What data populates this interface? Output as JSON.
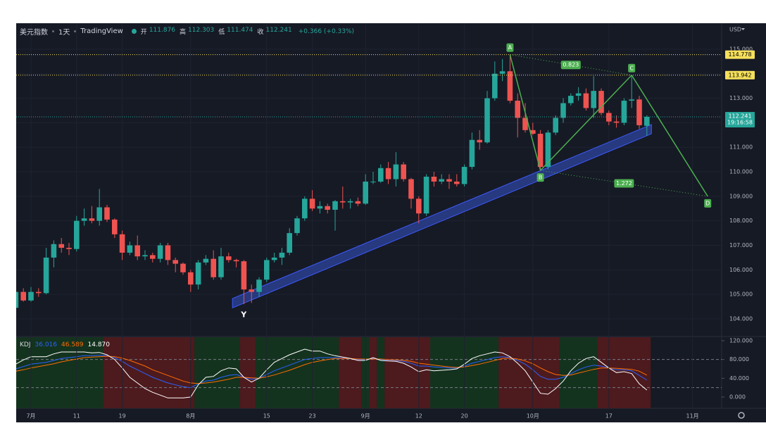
{
  "chart_data": [
    {
      "type": "candlestick",
      "title": "美元指数",
      "interval": "1天",
      "source": "TradingView",
      "currency": "USD",
      "ohlc_legend": [
        {
          "label": "开",
          "value": 111.876
        },
        {
          "label": "高",
          "value": 112.303
        },
        {
          "label": "低",
          "value": 111.474
        },
        {
          "label": "收",
          "value": 112.241
        }
      ],
      "change": "+0.366 (+0.33%)",
      "up_color": "#26a69a",
      "down_color": "#ef5350",
      "grid": true,
      "categories": [
        null,
        null,
        "7月",
        null,
        null,
        null,
        null,
        null,
        "11",
        null,
        null,
        null,
        null,
        null,
        "19",
        null,
        null,
        null,
        null,
        null,
        null,
        null,
        null,
        "8月",
        null,
        null,
        null,
        null,
        null,
        null,
        null,
        null,
        null,
        "15",
        null,
        null,
        null,
        null,
        null,
        "23",
        null,
        null,
        null,
        null,
        null,
        null,
        "9月",
        null,
        null,
        null,
        null,
        null,
        null,
        "12",
        null,
        null,
        null,
        null,
        null,
        "20",
        null,
        null,
        null,
        null,
        null,
        null,
        null,
        null,
        "10月",
        null,
        null,
        null,
        null,
        null,
        null,
        null,
        null,
        null,
        "17",
        null,
        null,
        null,
        null,
        null,
        null,
        null,
        null,
        null,
        null,
        "11月",
        null,
        null,
        null
      ],
      "open": [
        104.45,
        105.1,
        104.75,
        105.1,
        105.05,
        106.5,
        107.05,
        106.9,
        106.85,
        108.0,
        108.1,
        108.0,
        108.55,
        108.05,
        107.45,
        106.7,
        107.0,
        106.55,
        106.6,
        106.45,
        107.0,
        106.4,
        106.25,
        105.9,
        105.4,
        106.3,
        106.45,
        105.7,
        106.55,
        106.4,
        106.35,
        105.2,
        105.1,
        105.6,
        106.4,
        106.5,
        106.7,
        107.5,
        108.1,
        108.9,
        108.5,
        108.6,
        108.45,
        108.8,
        108.75,
        108.8,
        108.7,
        109.6,
        109.6,
        110.15,
        109.7,
        110.3,
        109.7,
        108.9,
        108.3,
        109.8,
        109.6,
        109.7,
        109.6,
        109.5,
        110.2,
        111.3,
        111.2,
        113.0,
        114.0,
        114.1,
        112.9,
        112.2,
        111.7,
        111.55,
        110.2,
        111.6,
        112.2,
        112.8,
        113.1,
        113.2,
        112.6,
        113.3,
        112.4,
        112.05,
        112.0,
        112.9,
        112.95,
        111.876,
        null,
        null,
        null,
        null,
        null,
        null,
        null,
        null,
        null
      ],
      "high": [
        105.15,
        105.25,
        105.3,
        105.25,
        106.9,
        107.2,
        107.3,
        107.1,
        108.2,
        108.5,
        108.6,
        109.3,
        108.65,
        108.1,
        107.6,
        107.15,
        107.4,
        106.8,
        106.7,
        107.1,
        107.1,
        106.5,
        106.3,
        106.0,
        106.4,
        106.6,
        106.8,
        106.9,
        106.7,
        106.45,
        106.4,
        105.4,
        105.7,
        106.5,
        106.7,
        106.9,
        107.7,
        108.2,
        109.0,
        109.25,
        108.8,
        108.7,
        108.85,
        109.4,
        108.9,
        108.95,
        109.9,
        110.0,
        110.3,
        110.4,
        110.8,
        110.4,
        109.75,
        109.0,
        109.9,
        110.0,
        109.9,
        109.9,
        109.9,
        110.3,
        111.6,
        111.7,
        113.3,
        114.5,
        114.6,
        114.778,
        113.2,
        112.8,
        112.0,
        111.7,
        111.7,
        112.3,
        113.0,
        113.2,
        113.45,
        113.4,
        113.9,
        113.4,
        112.5,
        112.3,
        113.0,
        113.942,
        113.1,
        112.303,
        null,
        null,
        null,
        null,
        null,
        null,
        null,
        null,
        null
      ],
      "low": [
        104.35,
        104.7,
        104.7,
        104.9,
        105.0,
        106.1,
        106.7,
        106.6,
        106.75,
        107.8,
        107.9,
        107.8,
        107.95,
        107.3,
        106.4,
        106.6,
        106.4,
        106.4,
        106.3,
        106.3,
        106.2,
        105.9,
        105.8,
        105.1,
        105.2,
        106.2,
        105.6,
        105.6,
        106.3,
        106.1,
        104.6,
        104.65,
        104.9,
        105.5,
        106.3,
        106.2,
        106.6,
        107.4,
        108.0,
        108.4,
        108.3,
        108.3,
        107.6,
        108.5,
        108.5,
        108.6,
        108.65,
        109.5,
        109.55,
        109.5,
        109.4,
        109.6,
        108.5,
        107.9,
        108.2,
        109.4,
        109.5,
        109.3,
        109.4,
        109.4,
        110.1,
        110.9,
        111.15,
        112.9,
        113.7,
        112.8,
        111.4,
        111.6,
        111.5,
        110.055,
        110.1,
        111.5,
        112.0,
        112.7,
        112.9,
        112.5,
        112.2,
        112.3,
        111.9,
        111.8,
        111.9,
        112.6,
        111.75,
        111.474,
        null,
        null,
        null,
        null,
        null,
        null,
        null,
        null,
        null
      ],
      "close": [
        105.1,
        104.75,
        105.1,
        105.05,
        106.5,
        107.05,
        106.9,
        106.85,
        108.0,
        108.1,
        108.0,
        108.55,
        108.05,
        107.45,
        106.7,
        107.0,
        106.55,
        106.6,
        106.45,
        107.0,
        106.4,
        106.25,
        105.9,
        105.4,
        106.3,
        106.45,
        105.7,
        106.55,
        106.4,
        106.35,
        105.2,
        105.1,
        105.6,
        106.4,
        106.5,
        106.7,
        107.5,
        108.1,
        108.9,
        108.5,
        108.6,
        108.45,
        108.8,
        108.75,
        108.8,
        108.7,
        109.6,
        109.6,
        110.15,
        109.7,
        110.3,
        109.7,
        108.9,
        108.3,
        109.8,
        109.6,
        109.7,
        109.6,
        109.5,
        110.2,
        111.3,
        111.2,
        113.0,
        114.0,
        114.1,
        112.9,
        112.2,
        111.7,
        111.55,
        110.2,
        111.6,
        112.2,
        112.8,
        113.1,
        113.2,
        112.6,
        113.3,
        112.4,
        112.05,
        112.0,
        112.9,
        112.95,
        111.9,
        112.241,
        null,
        null,
        null,
        null,
        null,
        null,
        null,
        null,
        null
      ],
      "ylim": [
        103.31,
        116.06
      ],
      "yticks": [
        {
          "value": 104,
          "label": "104.000"
        },
        {
          "value": 105,
          "label": "105.000"
        },
        {
          "value": 106,
          "label": "106.000"
        },
        {
          "value": 107,
          "label": "107.000"
        },
        {
          "value": 108,
          "label": "108.000"
        },
        {
          "value": 109,
          "label": "109.000"
        },
        {
          "value": 110,
          "label": "110.000"
        },
        {
          "value": 111,
          "label": "111.000"
        },
        {
          "value": 112,
          "label": "112.000"
        },
        {
          "value": 113,
          "label": "113.000"
        },
        {
          "value": 114,
          "label": "114.000"
        },
        {
          "value": 115,
          "label": "115.000"
        }
      ],
      "price_lines": [
        {
          "value": 114.778,
          "color": "#f5e05a"
        },
        {
          "value": 113.942,
          "color": "#f5e05a"
        }
      ],
      "last_price": {
        "value": 112.241,
        "countdown": "19:16:58",
        "color": "#26a69a"
      },
      "channel": {
        "label": "Y",
        "start": [
          28.5,
          104.45
        ],
        "end": [
          83.6,
          111.55
        ],
        "width": 0.38,
        "color": "#2a3f8f"
      },
      "pattern": {
        "color": "#4caf50",
        "points": [
          {
            "label": "A",
            "index": 65,
            "value": 114.778
          },
          {
            "label": "B",
            "index": 69,
            "value": 110.055
          },
          {
            "label": "C",
            "index": 81,
            "value": 113.942
          },
          {
            "label": "D",
            "index": 91,
            "value": 109.0
          }
        ],
        "ratios": [
          0.823,
          1.272
        ]
      }
    },
    {
      "type": "line",
      "title": "KDJ",
      "series": [
        {
          "color": "#2962ff",
          "legend_value": "36.016",
          "values": [
            60,
            65,
            70,
            72,
            74,
            78,
            82,
            84,
            86,
            88,
            88,
            89,
            88,
            84,
            76,
            66,
            58,
            50,
            42,
            36,
            30,
            26,
            22,
            20,
            28,
            34,
            36,
            42,
            46,
            48,
            42,
            38,
            40,
            48,
            56,
            62,
            68,
            74,
            80,
            82,
            84,
            84,
            84,
            83,
            82,
            80,
            80,
            82,
            80,
            79,
            78,
            76,
            72,
            66,
            66,
            64,
            63,
            62,
            62,
            66,
            72,
            76,
            80,
            84,
            86,
            84,
            78,
            70,
            58,
            44,
            38,
            38,
            42,
            50,
            58,
            64,
            68,
            66,
            62,
            58,
            58,
            56,
            46,
            36.016
          ]
        },
        {
          "color": "#ff6d00",
          "legend_value": "46.589",
          "values": [
            55,
            58,
            62,
            65,
            68,
            71,
            75,
            78,
            81,
            84,
            85,
            86,
            87,
            86,
            83,
            78,
            72,
            66,
            58,
            52,
            46,
            40,
            34,
            30,
            29,
            30,
            32,
            35,
            38,
            42,
            42,
            41,
            40,
            43,
            47,
            52,
            57,
            63,
            69,
            74,
            77,
            80,
            82,
            82,
            82,
            81,
            81,
            81,
            81,
            80,
            79,
            78,
            76,
            72,
            70,
            68,
            66,
            64,
            63,
            64,
            67,
            70,
            74,
            78,
            82,
            83,
            81,
            77,
            71,
            62,
            54,
            48,
            46,
            47,
            51,
            55,
            59,
            62,
            62,
            61,
            60,
            59,
            55,
            46.589
          ]
        },
        {
          "color": "#ffffff",
          "legend_value": "14.870",
          "values": [
            70,
            79,
            86,
            86,
            86,
            92,
            96,
            96,
            96,
            96,
            94,
            95,
            90,
            80,
            62,
            42,
            30,
            18,
            10,
            4,
            -2,
            -2,
            -2,
            0,
            26,
            42,
            44,
            56,
            62,
            60,
            42,
            32,
            40,
            58,
            74,
            82,
            90,
            96,
            102,
            98,
            98,
            92,
            88,
            85,
            82,
            78,
            78,
            84,
            78,
            77,
            76,
            72,
            64,
            54,
            58,
            56,
            57,
            58,
            60,
            70,
            82,
            88,
            92,
            96,
            94,
            86,
            72,
            56,
            32,
            8,
            6,
            18,
            34,
            56,
            72,
            82,
            86,
            74,
            62,
            52,
            54,
            50,
            28,
            14.87
          ]
        }
      ],
      "ylim": [
        -24,
        127.5
      ],
      "yticks": [
        {
          "value": 120,
          "label": "120.000"
        },
        {
          "value": 80,
          "label": "80.000"
        },
        {
          "value": 40,
          "label": "40.000"
        },
        {
          "value": 0,
          "label": "0.000"
        }
      ],
      "levels": [
        80,
        20
      ],
      "zones": [
        {
          "from": 0,
          "to": 11,
          "color": "#14331f"
        },
        {
          "from": 12,
          "to": 23,
          "color": "#4d1a1e"
        },
        {
          "from": 24,
          "to": 29,
          "color": "#14331f"
        },
        {
          "from": 30,
          "to": 31,
          "color": "#4d1a1e"
        },
        {
          "from": 32,
          "to": 42,
          "color": "#14331f"
        },
        {
          "from": 43,
          "to": 45,
          "color": "#4d1a1e"
        },
        {
          "from": 46,
          "to": 46,
          "color": "#14331f"
        },
        {
          "from": 47,
          "to": 47,
          "color": "#4d1a1e"
        },
        {
          "from": 48,
          "to": 48,
          "color": "#14331f"
        },
        {
          "from": 49,
          "to": 54,
          "color": "#4d1a1e"
        },
        {
          "from": 55,
          "to": 63,
          "color": "#14331f"
        },
        {
          "from": 64,
          "to": 71,
          "color": "#4d1a1e"
        },
        {
          "from": 72,
          "to": 76,
          "color": "#14331f"
        },
        {
          "from": 77,
          "to": 83,
          "color": "#4d1a1e"
        }
      ]
    }
  ]
}
